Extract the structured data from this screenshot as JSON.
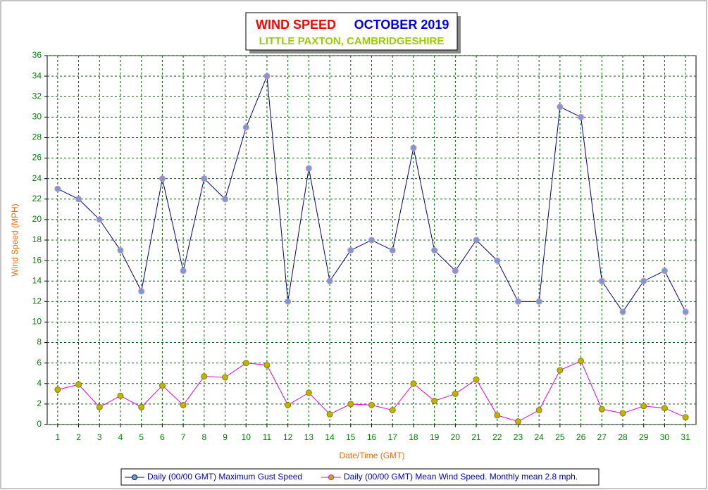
{
  "chart_data": {
    "type": "line",
    "title": "WIND SPEED",
    "period": "OCTOBER 2019",
    "subtitle": "LITTLE PAXTON, CAMBRIDGESHIRE",
    "x_label": "Date/Time (GMT)",
    "y_label": "Wind Speed (MPH)",
    "categories": [
      "1",
      "2",
      "3",
      "4",
      "5",
      "6",
      "7",
      "8",
      "9",
      "10",
      "11",
      "12",
      "13",
      "14",
      "15",
      "16",
      "17",
      "18",
      "19",
      "20",
      "21",
      "22",
      "23",
      "24",
      "25",
      "26",
      "27",
      "28",
      "29",
      "30",
      "31"
    ],
    "series": [
      {
        "name": "Daily (00/00 GMT) Maximum Gust Speed",
        "color": "#000080",
        "marker_color": "#6fa0d0",
        "values": [
          23,
          22,
          20,
          17,
          13,
          24,
          15,
          24,
          22,
          29,
          34,
          12,
          25,
          14,
          17,
          18,
          17,
          27,
          17,
          15,
          18,
          16,
          12,
          12,
          31,
          30,
          14,
          11,
          14,
          15,
          11
        ]
      },
      {
        "name": "Daily (00/00 GMT) Mean Wind Speed. Monthly mean 2.8 mph.",
        "color": "#e000e0",
        "marker_color": "#c0b400",
        "values": [
          3.4,
          3.9,
          1.7,
          2.8,
          1.7,
          3.8,
          1.9,
          4.7,
          4.6,
          6.0,
          5.8,
          1.9,
          3.1,
          1.0,
          2.0,
          1.9,
          1.4,
          4.0,
          2.3,
          3.0,
          4.4,
          0.9,
          0.3,
          1.4,
          5.3,
          6.2,
          1.5,
          1.1,
          1.8,
          1.6,
          0.7
        ]
      }
    ],
    "ylim": [
      0,
      36
    ],
    "yticks": [
      0,
      2,
      4,
      6,
      8,
      10,
      12,
      14,
      16,
      18,
      20,
      22,
      24,
      26,
      28,
      30,
      32,
      34,
      36
    ],
    "grid": true,
    "legend": "bottom"
  }
}
